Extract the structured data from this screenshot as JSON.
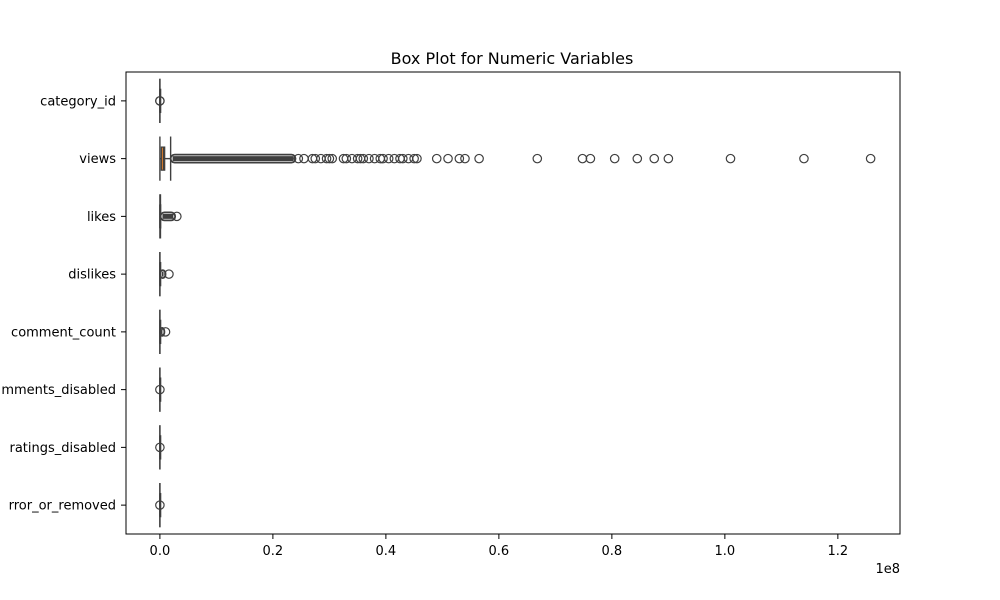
{
  "chart_data": {
    "type": "boxplot",
    "orientation": "horizontal",
    "title": "Box Plot for Numeric Variables",
    "xlabel": "",
    "ylabel": "",
    "x_offset_label": "1e8",
    "x_scale": 100000000,
    "xlim": [
      -0.06,
      1.31
    ],
    "x_ticks": [
      0.0,
      0.2,
      0.4,
      0.6,
      0.8,
      1.0,
      1.2
    ],
    "x_tick_labels": [
      "0.0",
      "0.2",
      "0.4",
      "0.6",
      "0.8",
      "1.0",
      "1.2"
    ],
    "grid": false,
    "categories": [
      "category_id",
      "views",
      "likes",
      "dislikes",
      "comment_count",
      "comments_disabled",
      "ratings_disabled",
      "video_error_or_removed"
    ],
    "visible_category_labels": [
      "category_id",
      "views",
      "likes",
      "dislikes",
      "comment_count",
      "mments_disabled",
      "ratings_disabled",
      "rror_or_removed"
    ],
    "colors": [
      "#3274a1",
      "#e1812c",
      "#3a923a",
      "#c03d3e",
      "#9372b2",
      "#845b53",
      "#d684bd",
      "#7f7f7f"
    ],
    "series": [
      {
        "q1": 0.0,
        "median": 0.0,
        "q3": 0.0,
        "whisker_low": 0.0,
        "whisker_high": 0.0,
        "outliers": [
          0.0,
          0.0
        ]
      },
      {
        "q1": 0.0025,
        "median": 0.0065,
        "q3": 0.0085,
        "whisker_low": 0.0,
        "whisker_high": 0.019,
        "outlier_band": [
          0.019,
          0.24
        ],
        "outliers": [
          0.245,
          0.255,
          0.27,
          0.275,
          0.285,
          0.295,
          0.3,
          0.305,
          0.325,
          0.33,
          0.34,
          0.35,
          0.355,
          0.36,
          0.37,
          0.38,
          0.39,
          0.395,
          0.405,
          0.415,
          0.425,
          0.43,
          0.44,
          0.45,
          0.455,
          0.49,
          0.51,
          0.53,
          0.54,
          0.565,
          0.668,
          0.748,
          0.762,
          0.805,
          0.845,
          0.875,
          0.9,
          1.01,
          1.14,
          1.258
        ]
      },
      {
        "q1": 0.0,
        "median": 0.0,
        "q3": 0.0005,
        "whisker_low": 0.0,
        "whisker_high": 0.001,
        "outlier_band": [
          0.001,
          0.027
        ],
        "outliers": [
          0.03
        ]
      },
      {
        "q1": 0.0,
        "median": 0.0,
        "q3": 0.0,
        "whisker_low": 0.0,
        "whisker_high": 0.0,
        "outlier_band": [
          0.0,
          0.01
        ],
        "outliers": [
          0.016
        ]
      },
      {
        "q1": 0.0,
        "median": 0.0,
        "q3": 0.0,
        "whisker_low": 0.0,
        "whisker_high": 0.0,
        "outlier_band": [
          0.0,
          0.008
        ],
        "outliers": [
          0.01
        ]
      },
      {
        "q1": 0.0,
        "median": 0.0,
        "q3": 0.0,
        "whisker_low": 0.0,
        "whisker_high": 0.0,
        "outliers": [
          0.0
        ]
      },
      {
        "q1": 0.0,
        "median": 0.0,
        "q3": 0.0,
        "whisker_low": 0.0,
        "whisker_high": 0.0,
        "outliers": [
          0.0
        ]
      },
      {
        "q1": 0.0,
        "median": 0.0,
        "q3": 0.0,
        "whisker_low": 0.0,
        "whisker_high": 0.0,
        "outliers": [
          0.0
        ]
      }
    ]
  }
}
